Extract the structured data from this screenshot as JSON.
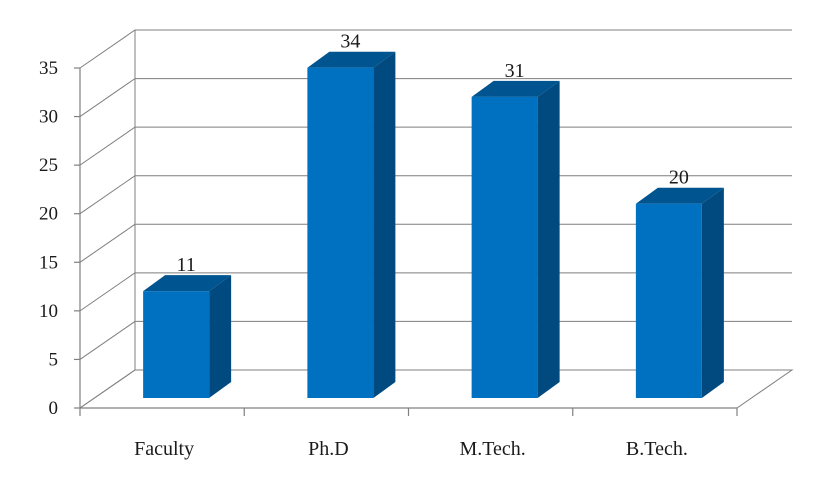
{
  "chart_data": {
    "type": "bar",
    "title": "",
    "xlabel": "",
    "ylabel": "",
    "categories": [
      "Faculty",
      "Ph.D",
      "M.Tech.",
      "B.Tech."
    ],
    "values": [
      11,
      34,
      31,
      20
    ],
    "data_labels": [
      "11",
      "34",
      "31",
      "20"
    ],
    "y_ticks": [
      "0",
      "5",
      "10",
      "15",
      "20",
      "25",
      "30",
      "35"
    ],
    "ylim": [
      0,
      35
    ],
    "grid": true,
    "legend": "none",
    "style": "3d-column",
    "colors": {
      "bar_front": "#0070c0",
      "bar_side": "#004a80",
      "bar_top": "#00548f",
      "grid": "#7f7f7f"
    }
  }
}
